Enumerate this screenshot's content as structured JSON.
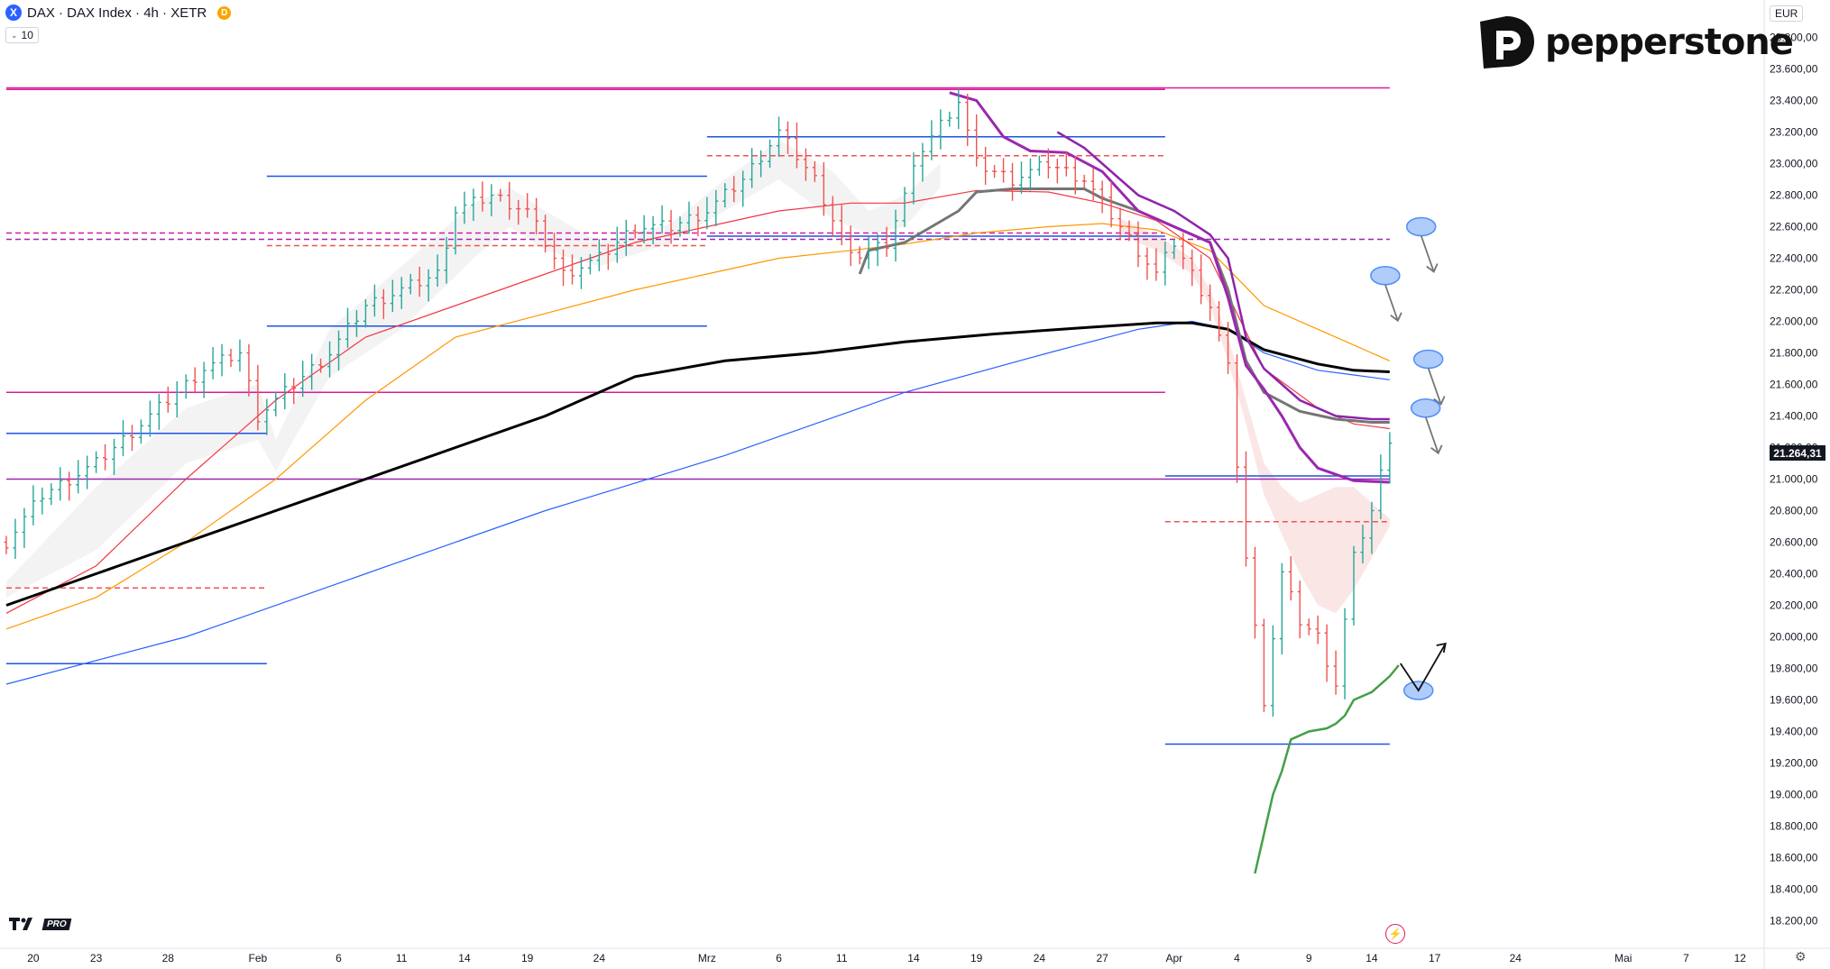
{
  "header": {
    "symbol_icon": "X",
    "title": "DAX · DAX Index · 4h · XETR",
    "badge": "D",
    "interval_value": "10"
  },
  "brand": {
    "name": "pepperstone",
    "logo_icon": "pepperstone-p-icon"
  },
  "currency": "EUR",
  "last_price": "21.264,31",
  "tv_badge": "PRO",
  "icons": {
    "settings": "gear-icon",
    "alert": "bolt-icon",
    "logo": "tradingview-icon"
  },
  "colors": {
    "up": "#26a69a",
    "down": "#ef5350",
    "ema_red": "#f23645",
    "ema_orange": "#ff9800",
    "ema_blue": "#2962ff",
    "ema_black": "#000000",
    "purple": "#9c27b0",
    "level_blue": "#1e53e5",
    "level_magenta": "#d81b9c",
    "green": "#43a047",
    "ellipse": "#4f8ff7"
  },
  "chart_data": {
    "type": "candlestick",
    "timeframe": "4h",
    "ylim": [
      18100,
      24100
    ],
    "y_ticks": [
      "18.200,00",
      "18.400,00",
      "18.600,00",
      "18.800,00",
      "19.000,00",
      "19.200,00",
      "19.400,00",
      "19.600,00",
      "19.800,00",
      "20.000,00",
      "20.200,00",
      "20.400,00",
      "20.600,00",
      "20.800,00",
      "21.000,00",
      "21.200,00",
      "21.400,00",
      "21.600,00",
      "21.800,00",
      "22.000,00",
      "22.200,00",
      "22.400,00",
      "22.600,00",
      "22.800,00",
      "23.000,00",
      "23.200,00",
      "23.400,00",
      "23.600,00",
      "23.800,00"
    ],
    "x_ticks": [
      "20",
      "23",
      "28",
      "Feb",
      "6",
      "11",
      "14",
      "19",
      "24",
      "Mrz",
      "6",
      "11",
      "14",
      "19",
      "24",
      "27",
      "Apr",
      "4",
      "9",
      "14",
      "17",
      "24",
      "Mai",
      "7",
      "12"
    ],
    "x_tick_index": [
      3,
      10,
      18,
      28,
      37,
      44,
      51,
      58,
      66,
      78,
      86,
      93,
      101,
      108,
      115,
      122,
      130,
      137,
      145,
      152,
      159,
      168,
      180,
      187,
      193
    ],
    "last_index": 154,
    "close_anchors": [
      [
        0,
        20600
      ],
      [
        4,
        20900
      ],
      [
        10,
        21100
      ],
      [
        14,
        21300
      ],
      [
        18,
        21500
      ],
      [
        22,
        21700
      ],
      [
        26,
        21800
      ],
      [
        28,
        21400
      ],
      [
        32,
        21600
      ],
      [
        36,
        21800
      ],
      [
        40,
        22100
      ],
      [
        44,
        22200
      ],
      [
        48,
        22300
      ],
      [
        50,
        22700
      ],
      [
        54,
        22800
      ],
      [
        58,
        22700
      ],
      [
        62,
        22300
      ],
      [
        66,
        22400
      ],
      [
        70,
        22600
      ],
      [
        74,
        22600
      ],
      [
        78,
        22700
      ],
      [
        82,
        22900
      ],
      [
        86,
        23200
      ],
      [
        90,
        22900
      ],
      [
        94,
        22400
      ],
      [
        98,
        22500
      ],
      [
        102,
        23100
      ],
      [
        106,
        23400
      ],
      [
        108,
        23000
      ],
      [
        112,
        22900
      ],
      [
        116,
        23000
      ],
      [
        120,
        22900
      ],
      [
        124,
        22600
      ],
      [
        128,
        22300
      ],
      [
        130,
        22500
      ],
      [
        134,
        22100
      ],
      [
        136,
        21700
      ],
      [
        138,
        20500
      ],
      [
        140,
        19600
      ],
      [
        142,
        20400
      ],
      [
        144,
        20100
      ],
      [
        146,
        20000
      ],
      [
        148,
        19700
      ],
      [
        150,
        20500
      ],
      [
        152,
        20800
      ],
      [
        154,
        21264
      ]
    ],
    "ema_red": [
      [
        0,
        20150
      ],
      [
        10,
        20450
      ],
      [
        20,
        21000
      ],
      [
        30,
        21500
      ],
      [
        40,
        21900
      ],
      [
        50,
        22100
      ],
      [
        60,
        22300
      ],
      [
        70,
        22500
      ],
      [
        78,
        22600
      ],
      [
        86,
        22700
      ],
      [
        94,
        22750
      ],
      [
        100,
        22750
      ],
      [
        108,
        22830
      ],
      [
        116,
        22820
      ],
      [
        122,
        22750
      ],
      [
        128,
        22640
      ],
      [
        134,
        22400
      ],
      [
        140,
        21700
      ],
      [
        146,
        21450
      ],
      [
        150,
        21350
      ],
      [
        154,
        21320
      ]
    ],
    "ema_orange": [
      [
        0,
        20050
      ],
      [
        10,
        20250
      ],
      [
        20,
        20600
      ],
      [
        30,
        21000
      ],
      [
        40,
        21500
      ],
      [
        50,
        21900
      ],
      [
        60,
        22050
      ],
      [
        70,
        22200
      ],
      [
        78,
        22300
      ],
      [
        86,
        22400
      ],
      [
        94,
        22450
      ],
      [
        100,
        22490
      ],
      [
        108,
        22560
      ],
      [
        116,
        22600
      ],
      [
        122,
        22620
      ],
      [
        128,
        22580
      ],
      [
        134,
        22450
      ],
      [
        140,
        22100
      ],
      [
        146,
        21950
      ],
      [
        150,
        21850
      ],
      [
        154,
        21750
      ]
    ],
    "ema_blue": [
      [
        0,
        19700
      ],
      [
        20,
        20000
      ],
      [
        40,
        20400
      ],
      [
        60,
        20800
      ],
      [
        80,
        21150
      ],
      [
        100,
        21550
      ],
      [
        116,
        21800
      ],
      [
        126,
        21950
      ],
      [
        132,
        22000
      ],
      [
        136,
        21950
      ],
      [
        140,
        21800
      ],
      [
        146,
        21690
      ],
      [
        150,
        21660
      ],
      [
        154,
        21630
      ]
    ],
    "ema_black": [
      [
        0,
        20200
      ],
      [
        10,
        20400
      ],
      [
        20,
        20600
      ],
      [
        30,
        20800
      ],
      [
        40,
        21000
      ],
      [
        50,
        21200
      ],
      [
        60,
        21400
      ],
      [
        70,
        21650
      ],
      [
        80,
        21750
      ],
      [
        90,
        21800
      ],
      [
        100,
        21870
      ],
      [
        110,
        21920
      ],
      [
        120,
        21960
      ],
      [
        128,
        21990
      ],
      [
        132,
        21990
      ],
      [
        136,
        21950
      ],
      [
        140,
        21820
      ],
      [
        146,
        21730
      ],
      [
        150,
        21690
      ],
      [
        154,
        21680
      ]
    ],
    "purple_line": [
      [
        105,
        23450
      ],
      [
        108,
        23400
      ],
      [
        111,
        23170
      ],
      [
        114,
        23080
      ],
      [
        118,
        23070
      ],
      [
        122,
        22950
      ],
      [
        126,
        22700
      ],
      [
        130,
        22600
      ],
      [
        134,
        22500
      ],
      [
        136,
        22150
      ],
      [
        138,
        21720
      ],
      [
        140,
        21570
      ],
      [
        142,
        21400
      ],
      [
        144,
        21200
      ],
      [
        146,
        21070
      ],
      [
        148,
        21030
      ],
      [
        150,
        20990
      ],
      [
        154,
        20980
      ]
    ],
    "purple_line2": [
      [
        117,
        23200
      ],
      [
        120,
        23100
      ],
      [
        124,
        22900
      ],
      [
        126,
        22800
      ],
      [
        130,
        22700
      ],
      [
        134,
        22550
      ],
      [
        136,
        22400
      ],
      [
        138,
        21900
      ],
      [
        140,
        21700
      ],
      [
        144,
        21500
      ],
      [
        148,
        21400
      ],
      [
        152,
        21380
      ],
      [
        154,
        21380
      ]
    ],
    "gray_line": [
      [
        95,
        22300
      ],
      [
        96,
        22450
      ],
      [
        100,
        22500
      ],
      [
        103,
        22600
      ],
      [
        106,
        22700
      ],
      [
        108,
        22820
      ],
      [
        112,
        22840
      ],
      [
        116,
        22840
      ],
      [
        120,
        22840
      ],
      [
        122,
        22780
      ],
      [
        126,
        22700
      ],
      [
        130,
        22600
      ],
      [
        134,
        22500
      ],
      [
        136,
        22200
      ],
      [
        138,
        21750
      ],
      [
        140,
        21550
      ],
      [
        144,
        21430
      ],
      [
        148,
        21380
      ],
      [
        152,
        21360
      ],
      [
        154,
        21360
      ]
    ],
    "green_line": [
      [
        139,
        18500
      ],
      [
        140,
        18750
      ],
      [
        141,
        19000
      ],
      [
        142,
        19150
      ],
      [
        143,
        19350
      ],
      [
        145,
        19400
      ],
      [
        147,
        19420
      ],
      [
        148,
        19450
      ],
      [
        149,
        19500
      ],
      [
        150,
        19600
      ],
      [
        152,
        19650
      ],
      [
        154,
        19750
      ],
      [
        155,
        19820
      ]
    ],
    "levels": [
      {
        "y": 23480,
        "x0": 0,
        "x1": 154,
        "color": "#d81b9c",
        "style": "solid"
      },
      {
        "y": 23470,
        "x0": 0,
        "x1": 129,
        "color": "#d81b9c",
        "style": "solid"
      },
      {
        "y": 23170,
        "x0": 78,
        "x1": 129,
        "color": "#1e53e5",
        "style": "solid"
      },
      {
        "y": 23050,
        "x0": 78,
        "x1": 129,
        "color": "#ef5350",
        "style": "dashed"
      },
      {
        "y": 22920,
        "x0": 29,
        "x1": 78,
        "color": "#1e53e5",
        "style": "solid"
      },
      {
        "y": 22560,
        "x0": 0,
        "x1": 129,
        "color": "#d81b9c",
        "style": "dashed"
      },
      {
        "y": 22520,
        "x0": 0,
        "x1": 154,
        "color": "#9c27b0",
        "style": "dashed"
      },
      {
        "y": 22540,
        "x0": 78,
        "x1": 129,
        "color": "#1e53e5",
        "style": "solid"
      },
      {
        "y": 22480,
        "x0": 29,
        "x1": 78,
        "color": "#ef5350",
        "style": "dashed"
      },
      {
        "y": 21970,
        "x0": 29,
        "x1": 78,
        "color": "#1e53e5",
        "style": "solid"
      },
      {
        "y": 21550,
        "x0": 0,
        "x1": 129,
        "color": "#d81b9c",
        "style": "solid"
      },
      {
        "y": 21290,
        "x0": 0,
        "x1": 29,
        "color": "#1e53e5",
        "style": "solid"
      },
      {
        "y": 21000,
        "x0": 0,
        "x1": 154,
        "color": "#9c27b0",
        "style": "solid"
      },
      {
        "y": 21020,
        "x0": 129,
        "x1": 154,
        "color": "#1e53e5",
        "style": "solid"
      },
      {
        "y": 20730,
        "x0": 129,
        "x1": 154,
        "color": "#ef5350",
        "style": "dashed"
      },
      {
        "y": 20310,
        "x0": 0,
        "x1": 29,
        "color": "#ef5350",
        "style": "dashed"
      },
      {
        "y": 19830,
        "x0": 0,
        "x1": 29,
        "color": "#1e53e5",
        "style": "solid"
      },
      {
        "y": 19320,
        "x0": 129,
        "x1": 154,
        "color": "#1e53e5",
        "style": "solid"
      }
    ],
    "annotations": [
      {
        "type": "ellipse",
        "x": 157.5,
        "y": 22600,
        "arrow": "down"
      },
      {
        "type": "ellipse",
        "x": 153.5,
        "y": 22290,
        "arrow": "down"
      },
      {
        "type": "ellipse",
        "x": 158.3,
        "y": 21760,
        "arrow": "down"
      },
      {
        "type": "ellipse",
        "x": 158,
        "y": 21450,
        "arrow": "down"
      },
      {
        "type": "ellipse",
        "x": 157.2,
        "y": 19660,
        "arrow": "up"
      }
    ],
    "grid": false,
    "legend": "none"
  }
}
